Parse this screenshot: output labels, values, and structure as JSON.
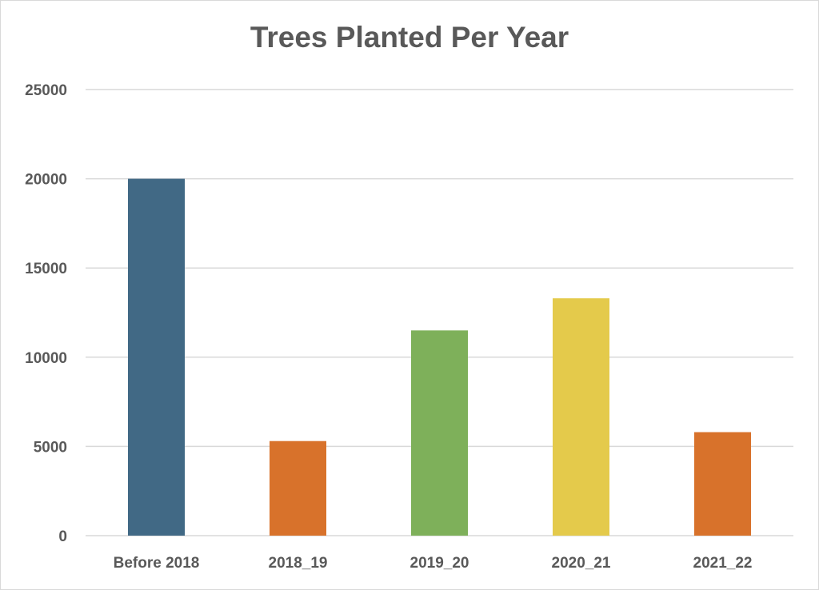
{
  "chart_data": {
    "type": "bar",
    "title": "Trees Planted Per Year",
    "categories": [
      "Before 2018",
      "2018_19",
      "2019_20",
      "2020_21",
      "2021_22"
    ],
    "values": [
      20000,
      5300,
      11500,
      13300,
      5800
    ],
    "colors": [
      "#416985",
      "#d8722b",
      "#7eb05a",
      "#e4ca4b",
      "#d8722b"
    ],
    "xlabel": "",
    "ylabel": "",
    "ylim": [
      0,
      25000
    ],
    "yticks": [
      0,
      5000,
      10000,
      15000,
      20000,
      25000
    ],
    "grid": true,
    "legend": "none"
  }
}
